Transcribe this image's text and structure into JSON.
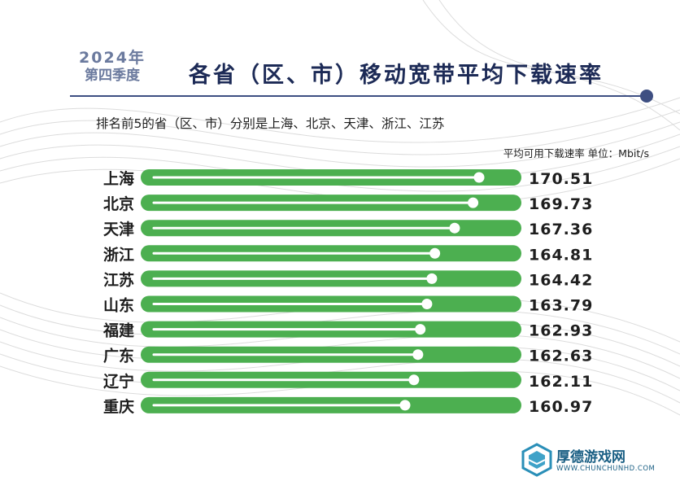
{
  "header": {
    "year": "2024年",
    "quarter": "第四季度",
    "title": "各省（区、市）移动宽带平均下载速率"
  },
  "subtitle": "排名前5的省（区、市）分别是上海、北京、天津、浙江、江苏",
  "unit_note": "平均可用下载速率 单位：Mbit/s",
  "colors": {
    "bar": "#4caf50",
    "track_line": "#ffffff",
    "title": "#1c2a56",
    "accent_line": "#3e4f82"
  },
  "chart_data": {
    "type": "bar",
    "orientation": "horizontal",
    "categories": [
      "上海",
      "北京",
      "天津",
      "浙江",
      "江苏",
      "山东",
      "福建",
      "广东",
      "辽宁",
      "重庆"
    ],
    "values": [
      170.51,
      169.73,
      167.36,
      164.81,
      164.42,
      163.79,
      162.93,
      162.63,
      162.11,
      160.97
    ],
    "value_labels": [
      "170.51",
      "169.73",
      "167.36",
      "164.81",
      "164.42",
      "163.79",
      "162.93",
      "162.63",
      "162.11",
      "160.97"
    ],
    "title": "各省（区、市）移动宽带平均下载速率",
    "xlabel": "",
    "ylabel": "",
    "unit": "Mbit/s",
    "grid": false,
    "legend": "none"
  },
  "watermark": {
    "name": "厚德游戏网",
    "url": "WWW.CHUNCHUNHD.COM",
    "icon": "hexagon-logo-icon"
  }
}
